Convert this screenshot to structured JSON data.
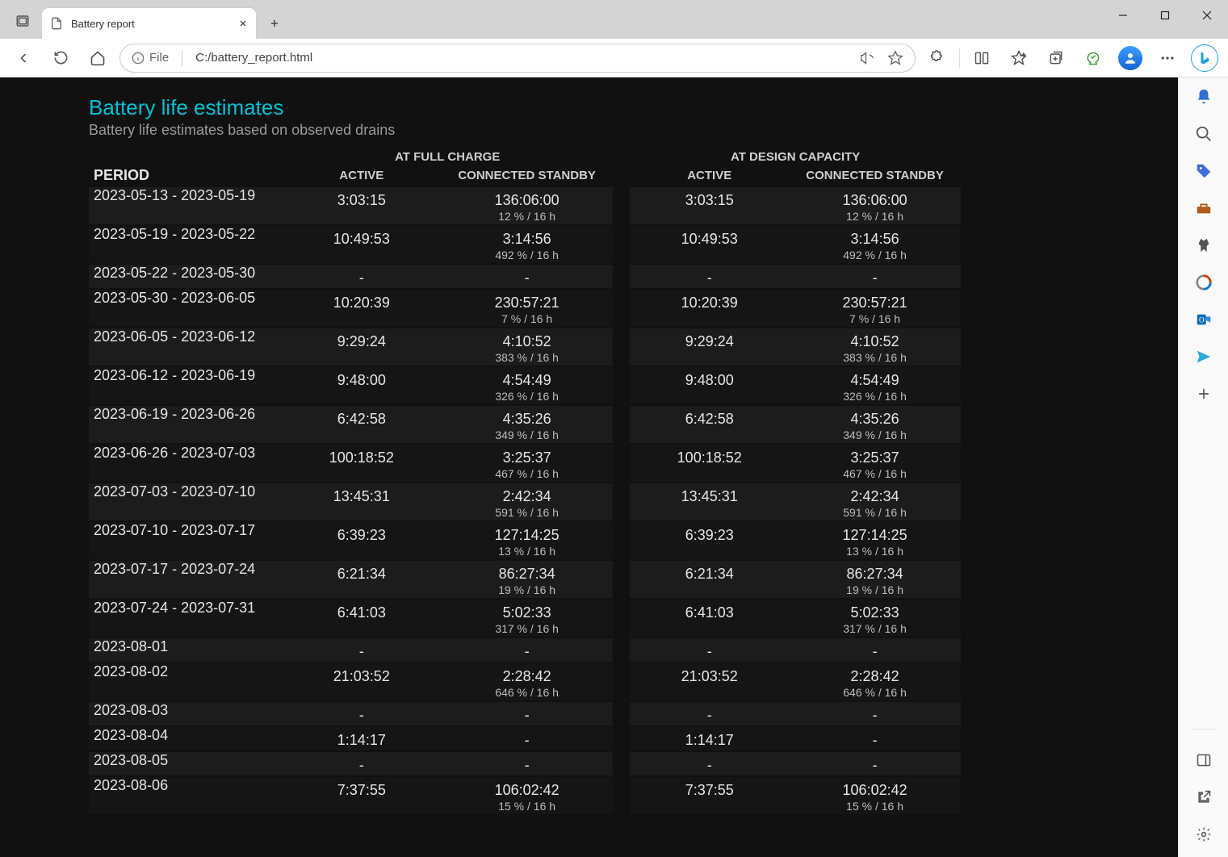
{
  "browser": {
    "tab_title": "Battery report",
    "addr_protocol": "File",
    "addr_path": "C:/battery_report.html"
  },
  "report": {
    "title": "Battery life estimates",
    "subtitle": "Battery life estimates based on observed drains",
    "group_headers": {
      "full": "AT FULL CHARGE",
      "design": "AT DESIGN CAPACITY"
    },
    "col_headers": {
      "period": "PERIOD",
      "active": "ACTIVE",
      "cs": "CONNECTED STANDBY"
    },
    "columns": {
      "period_width": 225,
      "active_width": 185,
      "cs_width": 200,
      "gap_width": 20
    },
    "colors": {
      "title": "#00c2d6",
      "bg": "#111111",
      "row_even": "#1c1c1c",
      "row_odd": "#151515",
      "text": "#e6e6e6",
      "subtext": "#bdbdbd"
    },
    "rows": [
      {
        "period": "2023-05-13 - 2023-05-19",
        "fc_active": "3:03:15",
        "fc_cs": "136:06:00",
        "fc_cs_sub": "12 % / 16 h",
        "dc_active": "3:03:15",
        "dc_cs": "136:06:00",
        "dc_cs_sub": "12 % / 16 h"
      },
      {
        "period": "2023-05-19 - 2023-05-22",
        "fc_active": "10:49:53",
        "fc_cs": "3:14:56",
        "fc_cs_sub": "492 % / 16 h",
        "dc_active": "10:49:53",
        "dc_cs": "3:14:56",
        "dc_cs_sub": "492 % / 16 h"
      },
      {
        "period": "2023-05-22 - 2023-05-30",
        "fc_active": "-",
        "fc_cs": "-",
        "fc_cs_sub": "",
        "dc_active": "-",
        "dc_cs": "-",
        "dc_cs_sub": ""
      },
      {
        "period": "2023-05-30 - 2023-06-05",
        "fc_active": "10:20:39",
        "fc_cs": "230:57:21",
        "fc_cs_sub": "7 % / 16 h",
        "dc_active": "10:20:39",
        "dc_cs": "230:57:21",
        "dc_cs_sub": "7 % / 16 h"
      },
      {
        "period": "2023-06-05 - 2023-06-12",
        "fc_active": "9:29:24",
        "fc_cs": "4:10:52",
        "fc_cs_sub": "383 % / 16 h",
        "dc_active": "9:29:24",
        "dc_cs": "4:10:52",
        "dc_cs_sub": "383 % / 16 h"
      },
      {
        "period": "2023-06-12 - 2023-06-19",
        "fc_active": "9:48:00",
        "fc_cs": "4:54:49",
        "fc_cs_sub": "326 % / 16 h",
        "dc_active": "9:48:00",
        "dc_cs": "4:54:49",
        "dc_cs_sub": "326 % / 16 h"
      },
      {
        "period": "2023-06-19 - 2023-06-26",
        "fc_active": "6:42:58",
        "fc_cs": "4:35:26",
        "fc_cs_sub": "349 % / 16 h",
        "dc_active": "6:42:58",
        "dc_cs": "4:35:26",
        "dc_cs_sub": "349 % / 16 h"
      },
      {
        "period": "2023-06-26 - 2023-07-03",
        "fc_active": "100:18:52",
        "fc_cs": "3:25:37",
        "fc_cs_sub": "467 % / 16 h",
        "dc_active": "100:18:52",
        "dc_cs": "3:25:37",
        "dc_cs_sub": "467 % / 16 h"
      },
      {
        "period": "2023-07-03 - 2023-07-10",
        "fc_active": "13:45:31",
        "fc_cs": "2:42:34",
        "fc_cs_sub": "591 % / 16 h",
        "dc_active": "13:45:31",
        "dc_cs": "2:42:34",
        "dc_cs_sub": "591 % / 16 h"
      },
      {
        "period": "2023-07-10 - 2023-07-17",
        "fc_active": "6:39:23",
        "fc_cs": "127:14:25",
        "fc_cs_sub": "13 % / 16 h",
        "dc_active": "6:39:23",
        "dc_cs": "127:14:25",
        "dc_cs_sub": "13 % / 16 h"
      },
      {
        "period": "2023-07-17 - 2023-07-24",
        "fc_active": "6:21:34",
        "fc_cs": "86:27:34",
        "fc_cs_sub": "19 % / 16 h",
        "dc_active": "6:21:34",
        "dc_cs": "86:27:34",
        "dc_cs_sub": "19 % / 16 h"
      },
      {
        "period": "2023-07-24 - 2023-07-31",
        "fc_active": "6:41:03",
        "fc_cs": "5:02:33",
        "fc_cs_sub": "317 % / 16 h",
        "dc_active": "6:41:03",
        "dc_cs": "5:02:33",
        "dc_cs_sub": "317 % / 16 h"
      },
      {
        "period": "2023-08-01",
        "fc_active": "-",
        "fc_cs": "-",
        "fc_cs_sub": "",
        "dc_active": "-",
        "dc_cs": "-",
        "dc_cs_sub": ""
      },
      {
        "period": "2023-08-02",
        "fc_active": "21:03:52",
        "fc_cs": "2:28:42",
        "fc_cs_sub": "646 % / 16 h",
        "dc_active": "21:03:52",
        "dc_cs": "2:28:42",
        "dc_cs_sub": "646 % / 16 h"
      },
      {
        "period": "2023-08-03",
        "fc_active": "-",
        "fc_cs": "-",
        "fc_cs_sub": "",
        "dc_active": "-",
        "dc_cs": "-",
        "dc_cs_sub": ""
      },
      {
        "period": "2023-08-04",
        "fc_active": "1:14:17",
        "fc_cs": "-",
        "fc_cs_sub": "",
        "dc_active": "1:14:17",
        "dc_cs": "-",
        "dc_cs_sub": ""
      },
      {
        "period": "2023-08-05",
        "fc_active": "-",
        "fc_cs": "-",
        "fc_cs_sub": "",
        "dc_active": "-",
        "dc_cs": "-",
        "dc_cs_sub": ""
      },
      {
        "period": "2023-08-06",
        "fc_active": "7:37:55",
        "fc_cs": "106:02:42",
        "fc_cs_sub": "15 % / 16 h",
        "dc_active": "7:37:55",
        "dc_cs": "106:02:42",
        "dc_cs_sub": "15 % / 16 h"
      }
    ]
  }
}
